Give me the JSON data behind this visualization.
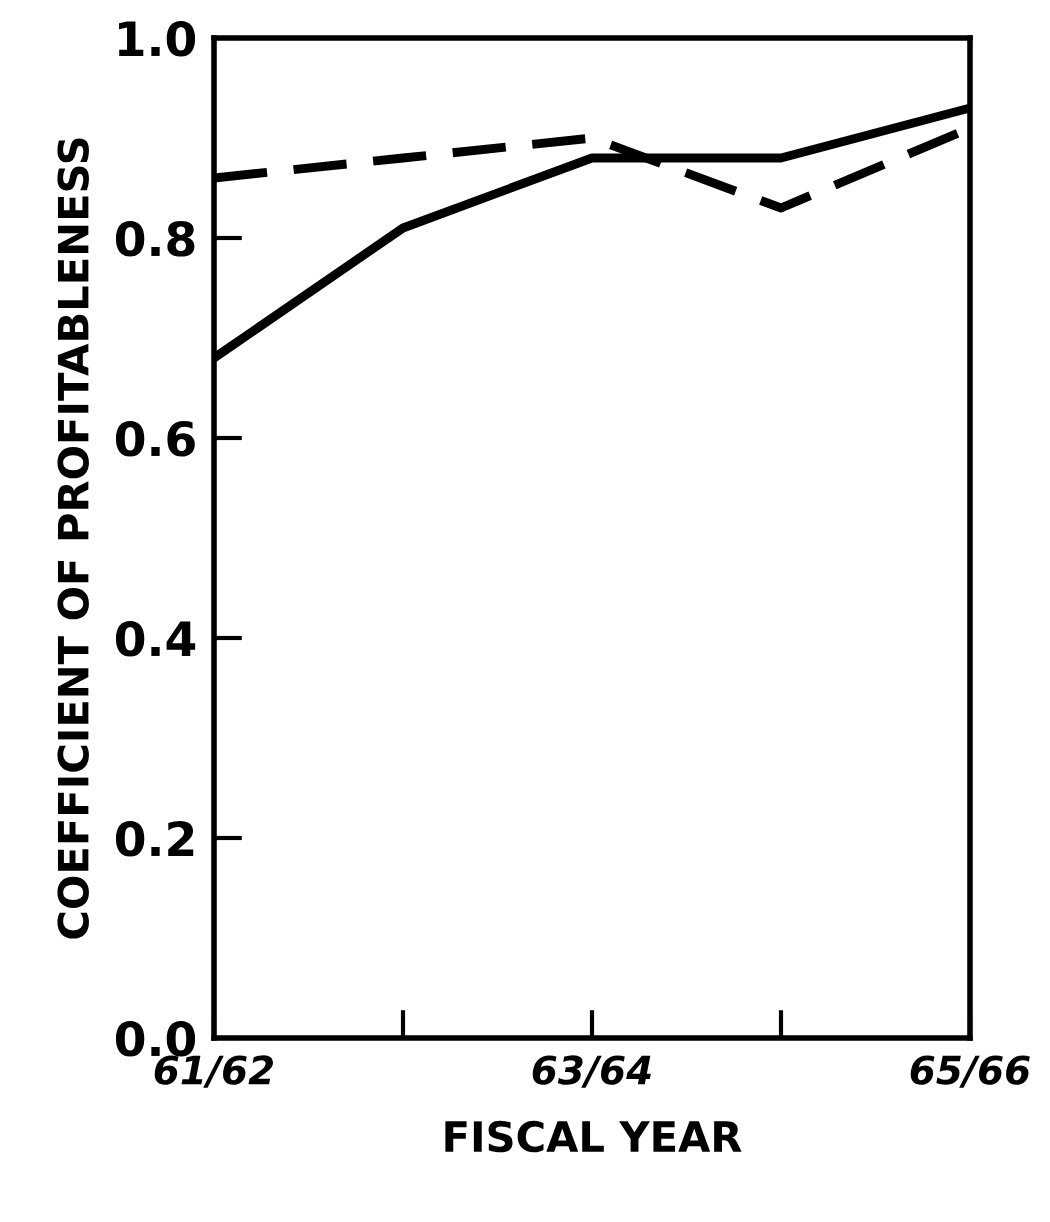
{
  "chart_data": {
    "type": "line",
    "xlabel": "FISCAL YEAR",
    "ylabel": "COEFFICIENT OF PROFITABLENESS",
    "categories": [
      "61/62",
      null,
      "63/64",
      null,
      "65/66"
    ],
    "series": [
      {
        "color": "#000000",
        "line_style": "solid",
        "values": [
          0.68,
          0.81,
          0.88,
          0.88,
          0.93
        ]
      },
      {
        "color": "#000000",
        "line_style": "dashed",
        "values": [
          0.86,
          0.88,
          0.9,
          0.83,
          0.91
        ]
      }
    ],
    "ylim": [
      0,
      1
    ],
    "yticks": [
      {
        "value": 0,
        "label": "0.0"
      },
      0.2,
      0.4,
      0.6,
      0.8,
      {
        "value": 1,
        "label": "1.0"
      }
    ],
    "grid": false,
    "legend": false,
    "marker": "none"
  }
}
